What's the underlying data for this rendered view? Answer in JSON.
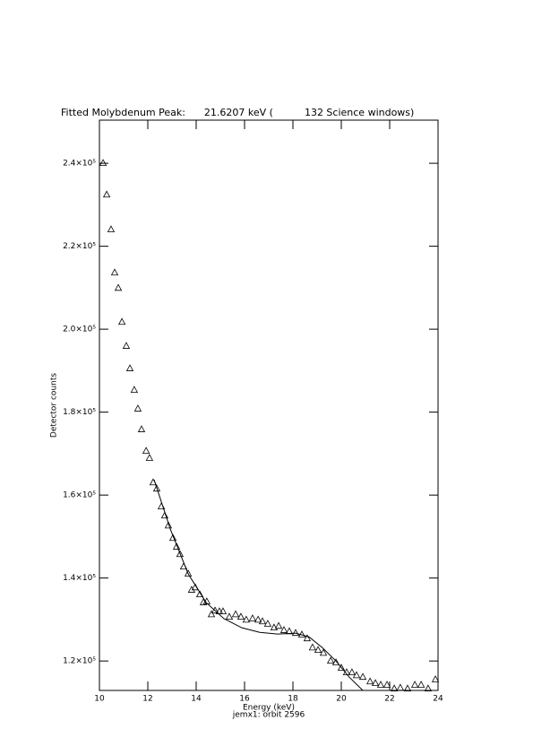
{
  "chart_data": {
    "type": "scatter",
    "title": "Fitted Molybdenum Peak:      21.6207 keV (          132 Science windows)",
    "xlabel": "Energy (keV)",
    "subtitle": "jemx1: orbit 2596",
    "ylabel": "Detector counts",
    "xlim": [
      10,
      24
    ],
    "xticks": [
      10,
      12,
      14,
      16,
      18,
      20,
      22,
      24
    ],
    "ylim": [
      112900,
      250400
    ],
    "yticks": [
      {
        "value": 120000,
        "label": "1.2×10⁵"
      },
      {
        "value": 140000,
        "label": "1.4×10⁵"
      },
      {
        "value": 160000,
        "label": "1.6×10⁵"
      },
      {
        "value": 180000,
        "label": "1.8×10⁵"
      },
      {
        "value": 200000,
        "label": "2.0×10⁵"
      },
      {
        "value": 220000,
        "label": "2.2×10⁵"
      },
      {
        "value": 240000,
        "label": "2.4×10⁵"
      }
    ],
    "series": [
      {
        "style": "triangle",
        "color": "#000000",
        "x": [
          10.15,
          10.3,
          10.48,
          10.63,
          10.78,
          10.93,
          11.11,
          11.26,
          11.44,
          11.59,
          11.74,
          11.93,
          12.07,
          12.22,
          12.37,
          12.56,
          12.7,
          12.85,
          13.04,
          13.19,
          13.33,
          13.48,
          13.67,
          13.81,
          13.96,
          14.15,
          14.3,
          14.44,
          14.63,
          14.78,
          14.96,
          15.11,
          15.37,
          15.63,
          15.85,
          16.07,
          16.33,
          16.56,
          16.74,
          16.96,
          17.22,
          17.41,
          17.63,
          17.85,
          18.11,
          18.37,
          18.59,
          18.81,
          19.04,
          19.26,
          19.56,
          19.78,
          20.0,
          20.22,
          20.44,
          20.63,
          20.89,
          21.19,
          21.41,
          21.63,
          21.89,
          22.19,
          22.44,
          22.74,
          23.04,
          23.3,
          23.59,
          23.89
        ],
        "values": [
          240000,
          232400,
          224000,
          213600,
          209900,
          201700,
          195900,
          190500,
          185300,
          180800,
          175800,
          170600,
          168900,
          163000,
          161500,
          157200,
          155000,
          152600,
          149600,
          147500,
          145700,
          142700,
          141000,
          137100,
          137700,
          136000,
          134100,
          134300,
          131200,
          132100,
          131900,
          131900,
          130600,
          131200,
          130600,
          129900,
          130200,
          129900,
          129500,
          128900,
          128000,
          128400,
          127400,
          127100,
          126700,
          126300,
          125400,
          123200,
          122600,
          121900,
          120000,
          119600,
          118300,
          117200,
          117200,
          116500,
          116100,
          115000,
          114600,
          114200,
          114200,
          113300,
          113500,
          113300,
          114200,
          114200,
          113300,
          115500
        ]
      },
      {
        "style": "line",
        "color": "#000000",
        "x": [
          12.26,
          12.93,
          13.67,
          14.41,
          15.15,
          15.89,
          16.63,
          17.37,
          18.11,
          18.67,
          19.22,
          19.78,
          20.33,
          20.89
        ],
        "values": [
          163700,
          151800,
          141000,
          134100,
          130200,
          128000,
          126900,
          126500,
          126700,
          125800,
          123200,
          120000,
          116100,
          112900
        ]
      }
    ]
  }
}
